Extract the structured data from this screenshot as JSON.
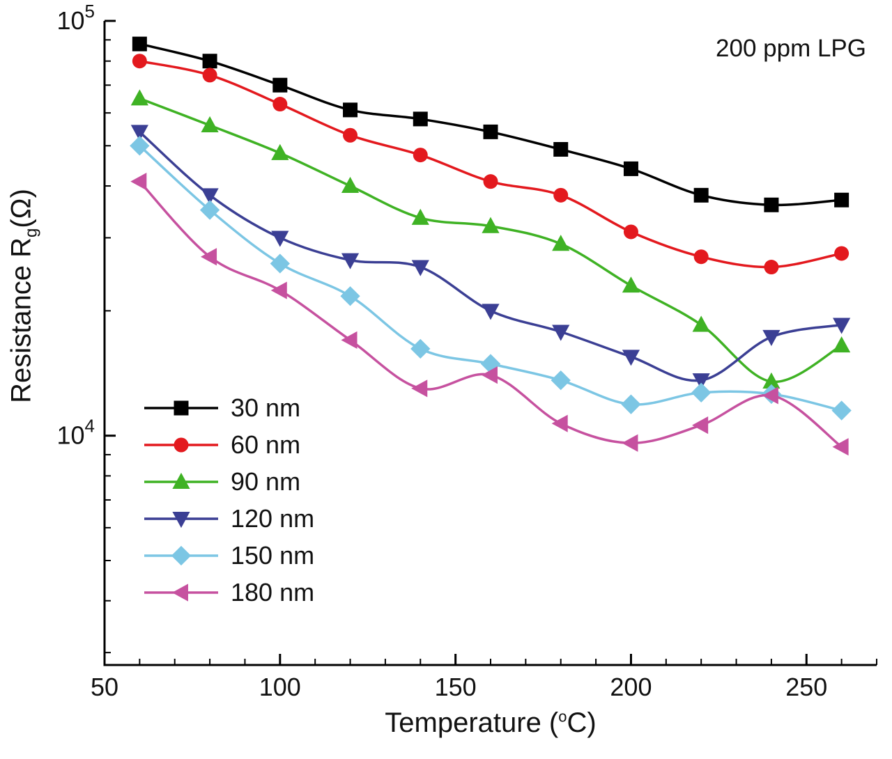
{
  "figure": {
    "annotation": "200 ppm LPG",
    "x_axis": {
      "title_prefix": "Temperature (",
      "title_sup": "o",
      "title_suffix": "C)"
    },
    "y_axis": {
      "title_prefix": "Resistance R",
      "title_sub": "g",
      "title_suffix": "(Ω)"
    }
  },
  "chart_data": {
    "type": "line",
    "title": "",
    "annotation": "200 ppm LPG",
    "xlabel": "Temperature (°C)",
    "ylabel": "Resistance Rg(Ω)",
    "yscale": "log",
    "grid": false,
    "legend_position": "lower-left-inside",
    "xlim": [
      50,
      270
    ],
    "ylim": [
      2800,
      100000
    ],
    "x_major_ticks": [
      50,
      100,
      150,
      200,
      250
    ],
    "x_minor_step": 10,
    "y_major_ticks": [
      {
        "value": 10000,
        "label_base": "10",
        "label_exp": "4"
      },
      {
        "value": 100000,
        "label_base": "10",
        "label_exp": "5"
      }
    ],
    "x": [
      60,
      80,
      100,
      120,
      140,
      160,
      180,
      200,
      220,
      240,
      260
    ],
    "series": [
      {
        "name": "30 nm",
        "color": "#000000",
        "marker": "square",
        "values": [
          88000,
          80000,
          70000,
          61000,
          58000,
          54000,
          49000,
          44000,
          38000,
          36000,
          37000
        ]
      },
      {
        "name": "60 nm",
        "color": "#e3191e",
        "marker": "circle",
        "values": [
          80000,
          74000,
          63000,
          53000,
          47500,
          41000,
          38000,
          31000,
          27000,
          25500,
          27500
        ]
      },
      {
        "name": "90 nm",
        "color": "#3fb224",
        "marker": "triangle-up",
        "values": [
          65000,
          56000,
          48000,
          40000,
          33500,
          32000,
          29000,
          23000,
          18500,
          13500,
          16500
        ]
      },
      {
        "name": "120 nm",
        "color": "#3b3f94",
        "marker": "triangle-down",
        "values": [
          54000,
          38000,
          30000,
          26500,
          25500,
          20000,
          17800,
          15500,
          13600,
          17300,
          18500
        ]
      },
      {
        "name": "150 nm",
        "color": "#7cc6e4",
        "marker": "diamond",
        "values": [
          50000,
          35000,
          26000,
          21700,
          16200,
          14900,
          13600,
          11900,
          12700,
          12600,
          11500
        ]
      },
      {
        "name": "180 nm",
        "color": "#c6519f",
        "marker": "triangle-left",
        "values": [
          41000,
          27000,
          22400,
          17000,
          13000,
          14000,
          10700,
          9600,
          10600,
          12500,
          9400
        ]
      }
    ]
  }
}
